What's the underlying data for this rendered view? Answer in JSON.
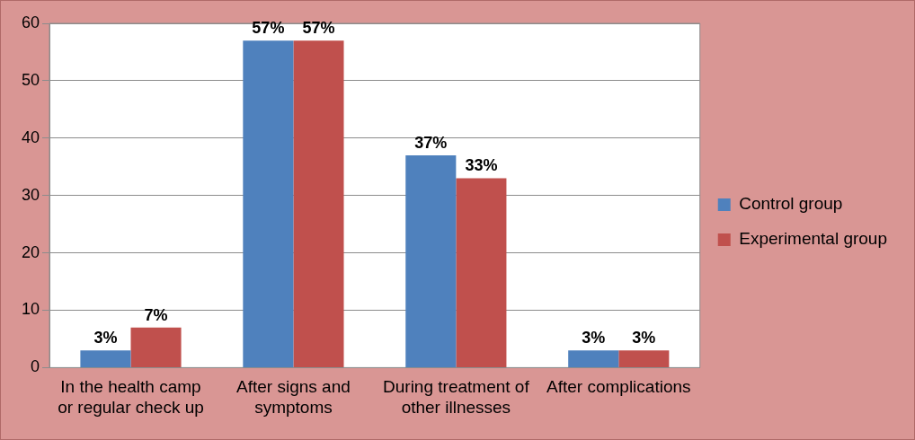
{
  "chart_data": {
    "type": "bar",
    "categories": [
      "In the health camp or regular check up",
      "After signs and symptoms",
      "During treatment of other illnesses",
      "After complications"
    ],
    "series": [
      {
        "name": "Control group",
        "color": "#4f81bd",
        "values": [
          3,
          57,
          37,
          3
        ],
        "value_labels": [
          "3%",
          "57%",
          "37%",
          "3%"
        ]
      },
      {
        "name": "Experimental group",
        "color": "#c0504d",
        "values": [
          7,
          57,
          33,
          3
        ],
        "value_labels": [
          "7%",
          "57%",
          "33%",
          "3%"
        ]
      }
    ],
    "ylim": [
      0,
      60
    ],
    "yticks": [
      0,
      10,
      20,
      30,
      40,
      50,
      60
    ],
    "grid": "y",
    "legend": "right"
  }
}
